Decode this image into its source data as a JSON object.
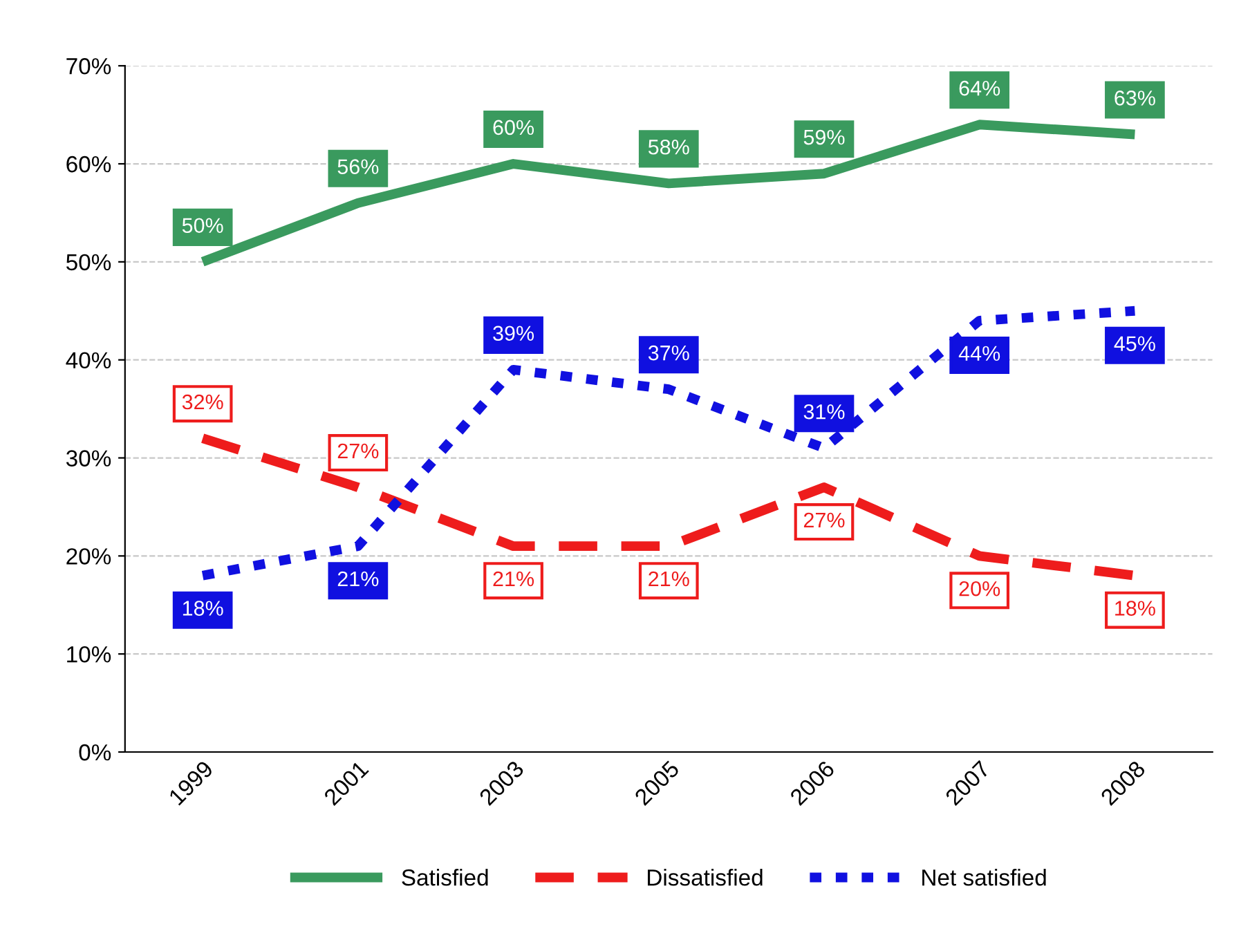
{
  "chart_data": {
    "type": "line",
    "categories": [
      "1999",
      "2001",
      "2003",
      "2005",
      "2006",
      "2007",
      "2008"
    ],
    "series": [
      {
        "name": "Satisfied",
        "color": "#3a9a5e",
        "line_style": "solid",
        "values": [
          50,
          56,
          60,
          58,
          59,
          64,
          63
        ],
        "value_labels": [
          "50%",
          "56%",
          "60%",
          "58%",
          "59%",
          "64%",
          "63%"
        ]
      },
      {
        "name": "Dissatisfied",
        "color": "#ee1c1c",
        "line_style": "dashed",
        "values": [
          32,
          27,
          21,
          21,
          27,
          20,
          18
        ],
        "value_labels": [
          "32%",
          "27%",
          "21%",
          "21%",
          "27%",
          "20%",
          "18%"
        ]
      },
      {
        "name": "Net satisfied",
        "color": "#1010e0",
        "line_style": "dotted",
        "values": [
          18,
          21,
          39,
          37,
          31,
          44,
          45
        ],
        "value_labels": [
          "18%",
          "21%",
          "39%",
          "37%",
          "31%",
          "44%",
          "45%"
        ]
      }
    ],
    "ylim": [
      0,
      70
    ],
    "yticks": [
      {
        "value": 0,
        "label": "0%"
      },
      {
        "value": 10,
        "label": "10%"
      },
      {
        "value": 20,
        "label": "20%"
      },
      {
        "value": 30,
        "label": "30%"
      },
      {
        "value": 40,
        "label": "40%"
      },
      {
        "value": 50,
        "label": "50%"
      },
      {
        "value": 60,
        "label": "60%"
      },
      {
        "value": 70,
        "label": "70%"
      }
    ],
    "grid": "y",
    "legend": "bottom",
    "marker": "none"
  }
}
